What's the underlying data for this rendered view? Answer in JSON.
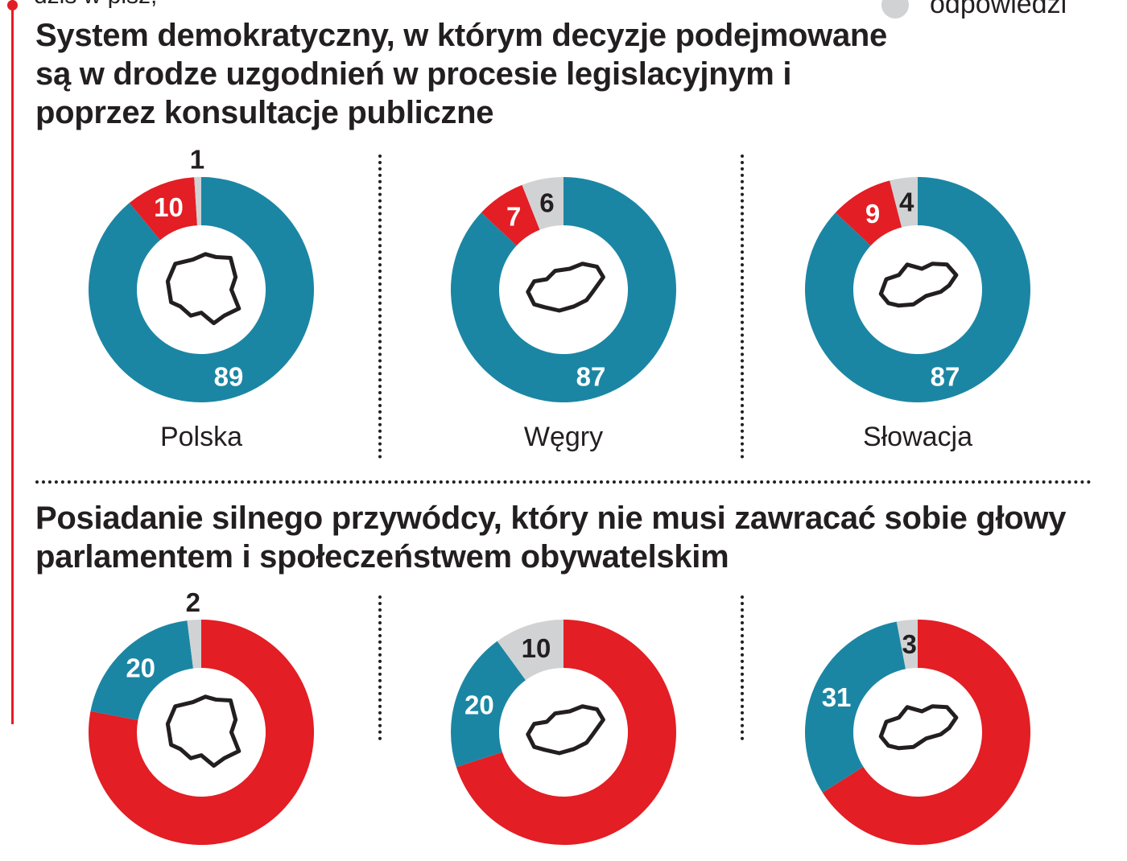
{
  "header": {
    "cut_text": "dziś w pisz,",
    "legend_cut_label": "odpowiedzi"
  },
  "colors": {
    "teal": "#1b86a3",
    "red": "#e31e24",
    "gray": "#d1d2d4",
    "dark": "#231f20"
  },
  "sections": [
    {
      "title": "System demokratyczny, w którym decyzje podejmowane są w drodze uzgodnień w procesie legislacyjnym i poprzez konsultacje publiczne"
    },
    {
      "title": "Posiadanie silnego przywódcy, który nie musi zawracać sobie głowy parlamentem i społeczeństwem obywatelskim"
    }
  ],
  "chart_data": [
    {
      "type": "pie",
      "title": "System demokratyczny, w którym decyzje podejmowane są w drodze uzgodnień w procesie legislacyjnym i poprzez konsultacje publiczne",
      "unit": "%",
      "countries": [
        {
          "name": "Polska",
          "values": {
            "teal": 89,
            "red": 10,
            "gray": 1
          }
        },
        {
          "name": "Węgry",
          "values": {
            "teal": 87,
            "red": 7,
            "gray": 6
          }
        },
        {
          "name": "Słowacja",
          "values": {
            "teal": 87,
            "red": 9,
            "gray": 4
          }
        }
      ]
    },
    {
      "type": "pie",
      "title": "Posiadanie silnego przywódcy, który nie musi zawracać sobie głowy parlamentem i społeczeństwem obywatelskim",
      "unit": "%",
      "countries": [
        {
          "name": "Polska",
          "values": {
            "red": 78,
            "teal": 20,
            "gray": 2
          }
        },
        {
          "name": "Węgry",
          "values": {
            "red": 70,
            "teal": 20,
            "gray": 10
          }
        },
        {
          "name": "Słowacja",
          "values": {
            "red": 66,
            "teal": 31,
            "gray": 3
          }
        }
      ],
      "visible_labels": [
        {
          "country": "Polska",
          "teal": "20",
          "gray": "2"
        },
        {
          "country": "Węgry",
          "teal": "20",
          "gray": "10"
        },
        {
          "country": "Słowacja",
          "teal": "31",
          "gray": "3"
        }
      ]
    }
  ]
}
